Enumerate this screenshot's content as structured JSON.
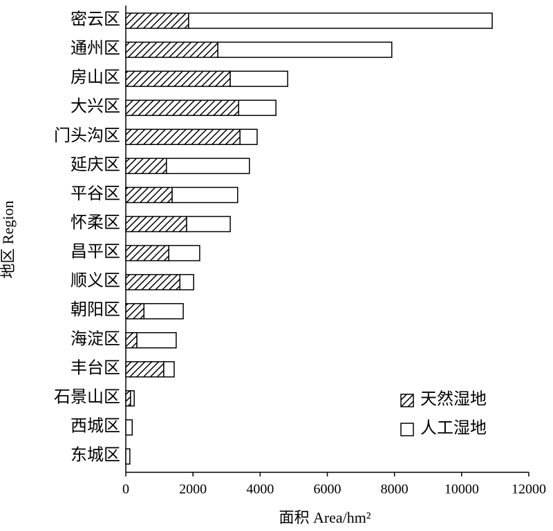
{
  "chart_data": {
    "type": "stacked-barh",
    "categories": [
      "密云区",
      "通州区",
      "房山区",
      "大兴区",
      "门头沟区",
      "延庆区",
      "平谷区",
      "怀柔区",
      "昌平区",
      "顺义区",
      "朝阳区",
      "海淀区",
      "丰台区",
      "石景山区",
      "西城区",
      "东城区"
    ],
    "series": [
      {
        "name": "天然湿地",
        "color": "#000000",
        "hatch": true,
        "values": [
          1870,
          2740,
          3110,
          3360,
          3400,
          1210,
          1380,
          1810,
          1280,
          1610,
          540,
          330,
          1130,
          140,
          0,
          0
        ]
      },
      {
        "name": "人工湿地",
        "color": "#ffffff",
        "hatch": false,
        "values": [
          9040,
          5180,
          1710,
          1110,
          510,
          2470,
          1950,
          1300,
          920,
          410,
          1170,
          1170,
          310,
          110,
          190,
          120
        ]
      }
    ],
    "xlabel": "面积 Area/hm²",
    "ylabel": "地区 Region",
    "xlim": [
      0,
      12000
    ],
    "xticks": [
      0,
      2000,
      4000,
      6000,
      8000,
      10000,
      12000
    ],
    "legend": "lower right"
  }
}
